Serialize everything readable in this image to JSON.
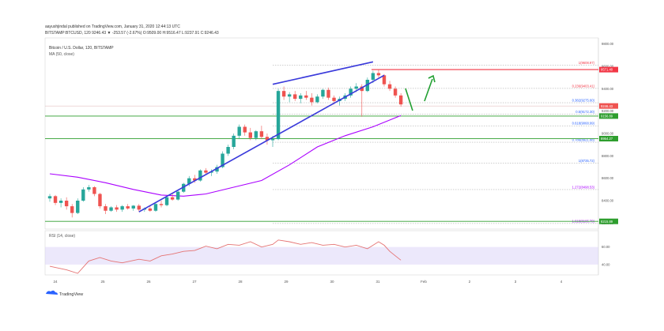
{
  "header": {
    "publisher": "aayushjindal published on TradingView.com, January 31, 2020 12:44:13 UTC",
    "symbol_line": "BITSTAMP:BTCUSD, 120  9246.43  ▼ -253.57 (-2.67%)  O:9509.00  H:9516.47  L:9237.91  C:9246.43",
    "title": "Bitcoin / U.S. Dollar, 120, BITSTAMP",
    "ma_label": "MA (50, close)"
  },
  "rsi_label": "RSI (14, close)",
  "footer": {
    "brand": "TradingView"
  },
  "colors": {
    "up": "#26a69a",
    "down": "#ef5350",
    "ma": "#aa00ff",
    "trendline": "#3a3adb",
    "support": "#2e9e2e",
    "resistance": "#f23645",
    "fib": "#9e9e9e",
    "rsi_line": "#e57373",
    "rsi_band": "#dcd6f7",
    "arrow": "#22a032"
  },
  "price_axis": {
    "ticks": [
      "9800.00",
      "9600.00",
      "9400.00",
      "9200.00",
      "9000.00",
      "8800.00",
      "8600.00",
      "8400.00",
      "8200.00"
    ],
    "badges": [
      {
        "label": "9571.40",
        "value": 9571,
        "color": "#f23645"
      },
      {
        "label": "9246.43",
        "value": 9246,
        "color": "#ef5350"
      },
      {
        "label": "9156.89",
        "value": 9156,
        "color": "#2e9e2e"
      },
      {
        "label": "8954.27",
        "value": 8954,
        "color": "#2e9e2e"
      },
      {
        "label": "8215.89",
        "value": 8215,
        "color": "#2e9e2e"
      }
    ]
  },
  "fib_levels": [
    {
      "label": "1(9608.97)",
      "value": 9609
    },
    {
      "label": "0.236(9403.41)",
      "value": 9403
    },
    {
      "label": "0.382(9275.60)",
      "value": 9275
    },
    {
      "label": "0.5(9172.30)",
      "value": 9172
    },
    {
      "label": "0.618(9068.99)",
      "value": 9069
    },
    {
      "label": "0.786(8921.88)",
      "value": 8922
    },
    {
      "label": "1(8735.72)",
      "value": 8736
    },
    {
      "label": "1.272(8498.53)",
      "value": 8499
    },
    {
      "label": "1.618(8195.79)",
      "value": 8196
    }
  ],
  "rsi_axis": {
    "ticks": [
      "60.00",
      "40.00"
    ]
  },
  "x_axis": {
    "labels": [
      "24",
      "25",
      "26",
      "27",
      "28",
      "29",
      "30",
      "31",
      "Feb",
      "2",
      "3",
      "4"
    ]
  },
  "chart_data": {
    "type": "candlestick",
    "symbol": "BTCUSD",
    "candles": [
      [
        8420,
        8460,
        8390,
        8440
      ],
      [
        8440,
        8450,
        8360,
        8380
      ],
      [
        8380,
        8420,
        8340,
        8400
      ],
      [
        8400,
        8430,
        8320,
        8350
      ],
      [
        8350,
        8370,
        8250,
        8290
      ],
      [
        8290,
        8420,
        8280,
        8400
      ],
      [
        8400,
        8520,
        8390,
        8500
      ],
      [
        8500,
        8540,
        8480,
        8520
      ],
      [
        8520,
        8530,
        8440,
        8460
      ],
      [
        8460,
        8470,
        8330,
        8350
      ],
      [
        8350,
        8370,
        8280,
        8310
      ],
      [
        8310,
        8350,
        8300,
        8340
      ],
      [
        8340,
        8360,
        8300,
        8320
      ],
      [
        8320,
        8360,
        8300,
        8350
      ],
      [
        8350,
        8370,
        8320,
        8330
      ],
      [
        8330,
        8360,
        8310,
        8355
      ],
      [
        8355,
        8370,
        8300,
        8320
      ],
      [
        8320,
        8340,
        8300,
        8330
      ],
      [
        8330,
        8350,
        8300,
        8310
      ],
      [
        8310,
        8380,
        8300,
        8370
      ],
      [
        8370,
        8400,
        8340,
        8360
      ],
      [
        8360,
        8440,
        8350,
        8430
      ],
      [
        8430,
        8460,
        8400,
        8410
      ],
      [
        8410,
        8490,
        8400,
        8480
      ],
      [
        8480,
        8560,
        8470,
        8550
      ],
      [
        8550,
        8620,
        8530,
        8600
      ],
      [
        8600,
        8630,
        8560,
        8580
      ],
      [
        8580,
        8680,
        8570,
        8670
      ],
      [
        8670,
        8690,
        8630,
        8650
      ],
      [
        8650,
        8680,
        8620,
        8660
      ],
      [
        8660,
        8720,
        8640,
        8700
      ],
      [
        8700,
        8840,
        8690,
        8820
      ],
      [
        8820,
        8900,
        8800,
        8880
      ],
      [
        8880,
        9000,
        8860,
        8980
      ],
      [
        8980,
        9080,
        8950,
        9060
      ],
      [
        9060,
        9080,
        8980,
        9010
      ],
      [
        9010,
        9050,
        8940,
        8960
      ],
      [
        8960,
        9030,
        8940,
        9020
      ],
      [
        9020,
        9070,
        8950,
        8970
      ],
      [
        8970,
        9000,
        8900,
        8940
      ],
      [
        8940,
        8980,
        8880,
        8950
      ],
      [
        8950,
        9400,
        8940,
        9380
      ],
      [
        9380,
        9420,
        9300,
        9330
      ],
      [
        9330,
        9370,
        9280,
        9350
      ],
      [
        9350,
        9380,
        9290,
        9310
      ],
      [
        9310,
        9360,
        9270,
        9340
      ],
      [
        9340,
        9380,
        9300,
        9320
      ],
      [
        9320,
        9360,
        9250,
        9280
      ],
      [
        9280,
        9350,
        9270,
        9330
      ],
      [
        9330,
        9400,
        9310,
        9390
      ],
      [
        9390,
        9410,
        9300,
        9320
      ],
      [
        9320,
        9340,
        9260,
        9290
      ],
      [
        9290,
        9330,
        9250,
        9310
      ],
      [
        9310,
        9360,
        9290,
        9340
      ],
      [
        9340,
        9420,
        9320,
        9400
      ],
      [
        9400,
        9450,
        9370,
        9420
      ],
      [
        9420,
        9440,
        9150,
        9380
      ],
      [
        9380,
        9500,
        9370,
        9480
      ],
      [
        9480,
        9560,
        9450,
        9540
      ],
      [
        9540,
        9570,
        9500,
        9520
      ],
      [
        9520,
        9530,
        9420,
        9440
      ],
      [
        9440,
        9470,
        9380,
        9400
      ],
      [
        9400,
        9420,
        9320,
        9340
      ],
      [
        9340,
        9360,
        9240,
        9260
      ]
    ],
    "ma50": [
      [
        0,
        8640
      ],
      [
        5,
        8610
      ],
      [
        10,
        8560
      ],
      [
        15,
        8500
      ],
      [
        20,
        8450
      ],
      [
        24,
        8440
      ],
      [
        28,
        8460
      ],
      [
        33,
        8520
      ],
      [
        38,
        8580
      ],
      [
        43,
        8720
      ],
      [
        48,
        8880
      ],
      [
        53,
        8980
      ],
      [
        58,
        9060
      ],
      [
        63,
        9160
      ]
    ],
    "rsi": [
      [
        0,
        38
      ],
      [
        3,
        34
      ],
      [
        5,
        30
      ],
      [
        7,
        44
      ],
      [
        9,
        48
      ],
      [
        11,
        44
      ],
      [
        13,
        42
      ],
      [
        16,
        46
      ],
      [
        18,
        44
      ],
      [
        20,
        50
      ],
      [
        22,
        52
      ],
      [
        24,
        55
      ],
      [
        26,
        56
      ],
      [
        28,
        61
      ],
      [
        30,
        58
      ],
      [
        32,
        63
      ],
      [
        34,
        62
      ],
      [
        36,
        66
      ],
      [
        38,
        60
      ],
      [
        40,
        63
      ],
      [
        41,
        68
      ],
      [
        43,
        66
      ],
      [
        45,
        63
      ],
      [
        47,
        65
      ],
      [
        49,
        62
      ],
      [
        51,
        63
      ],
      [
        53,
        60
      ],
      [
        55,
        62
      ],
      [
        57,
        58
      ],
      [
        59,
        66
      ],
      [
        60,
        62
      ],
      [
        61,
        55
      ],
      [
        62,
        50
      ],
      [
        63,
        45
      ]
    ],
    "trendlines": [
      {
        "from": [
          16,
          8300
        ],
        "to": [
          60,
          9520
        ]
      },
      {
        "from": [
          40,
          9440
        ],
        "to": [
          58,
          9640
        ]
      }
    ],
    "ylim": [
      8160,
      9840
    ],
    "rsi_range": [
      30,
      75
    ]
  }
}
